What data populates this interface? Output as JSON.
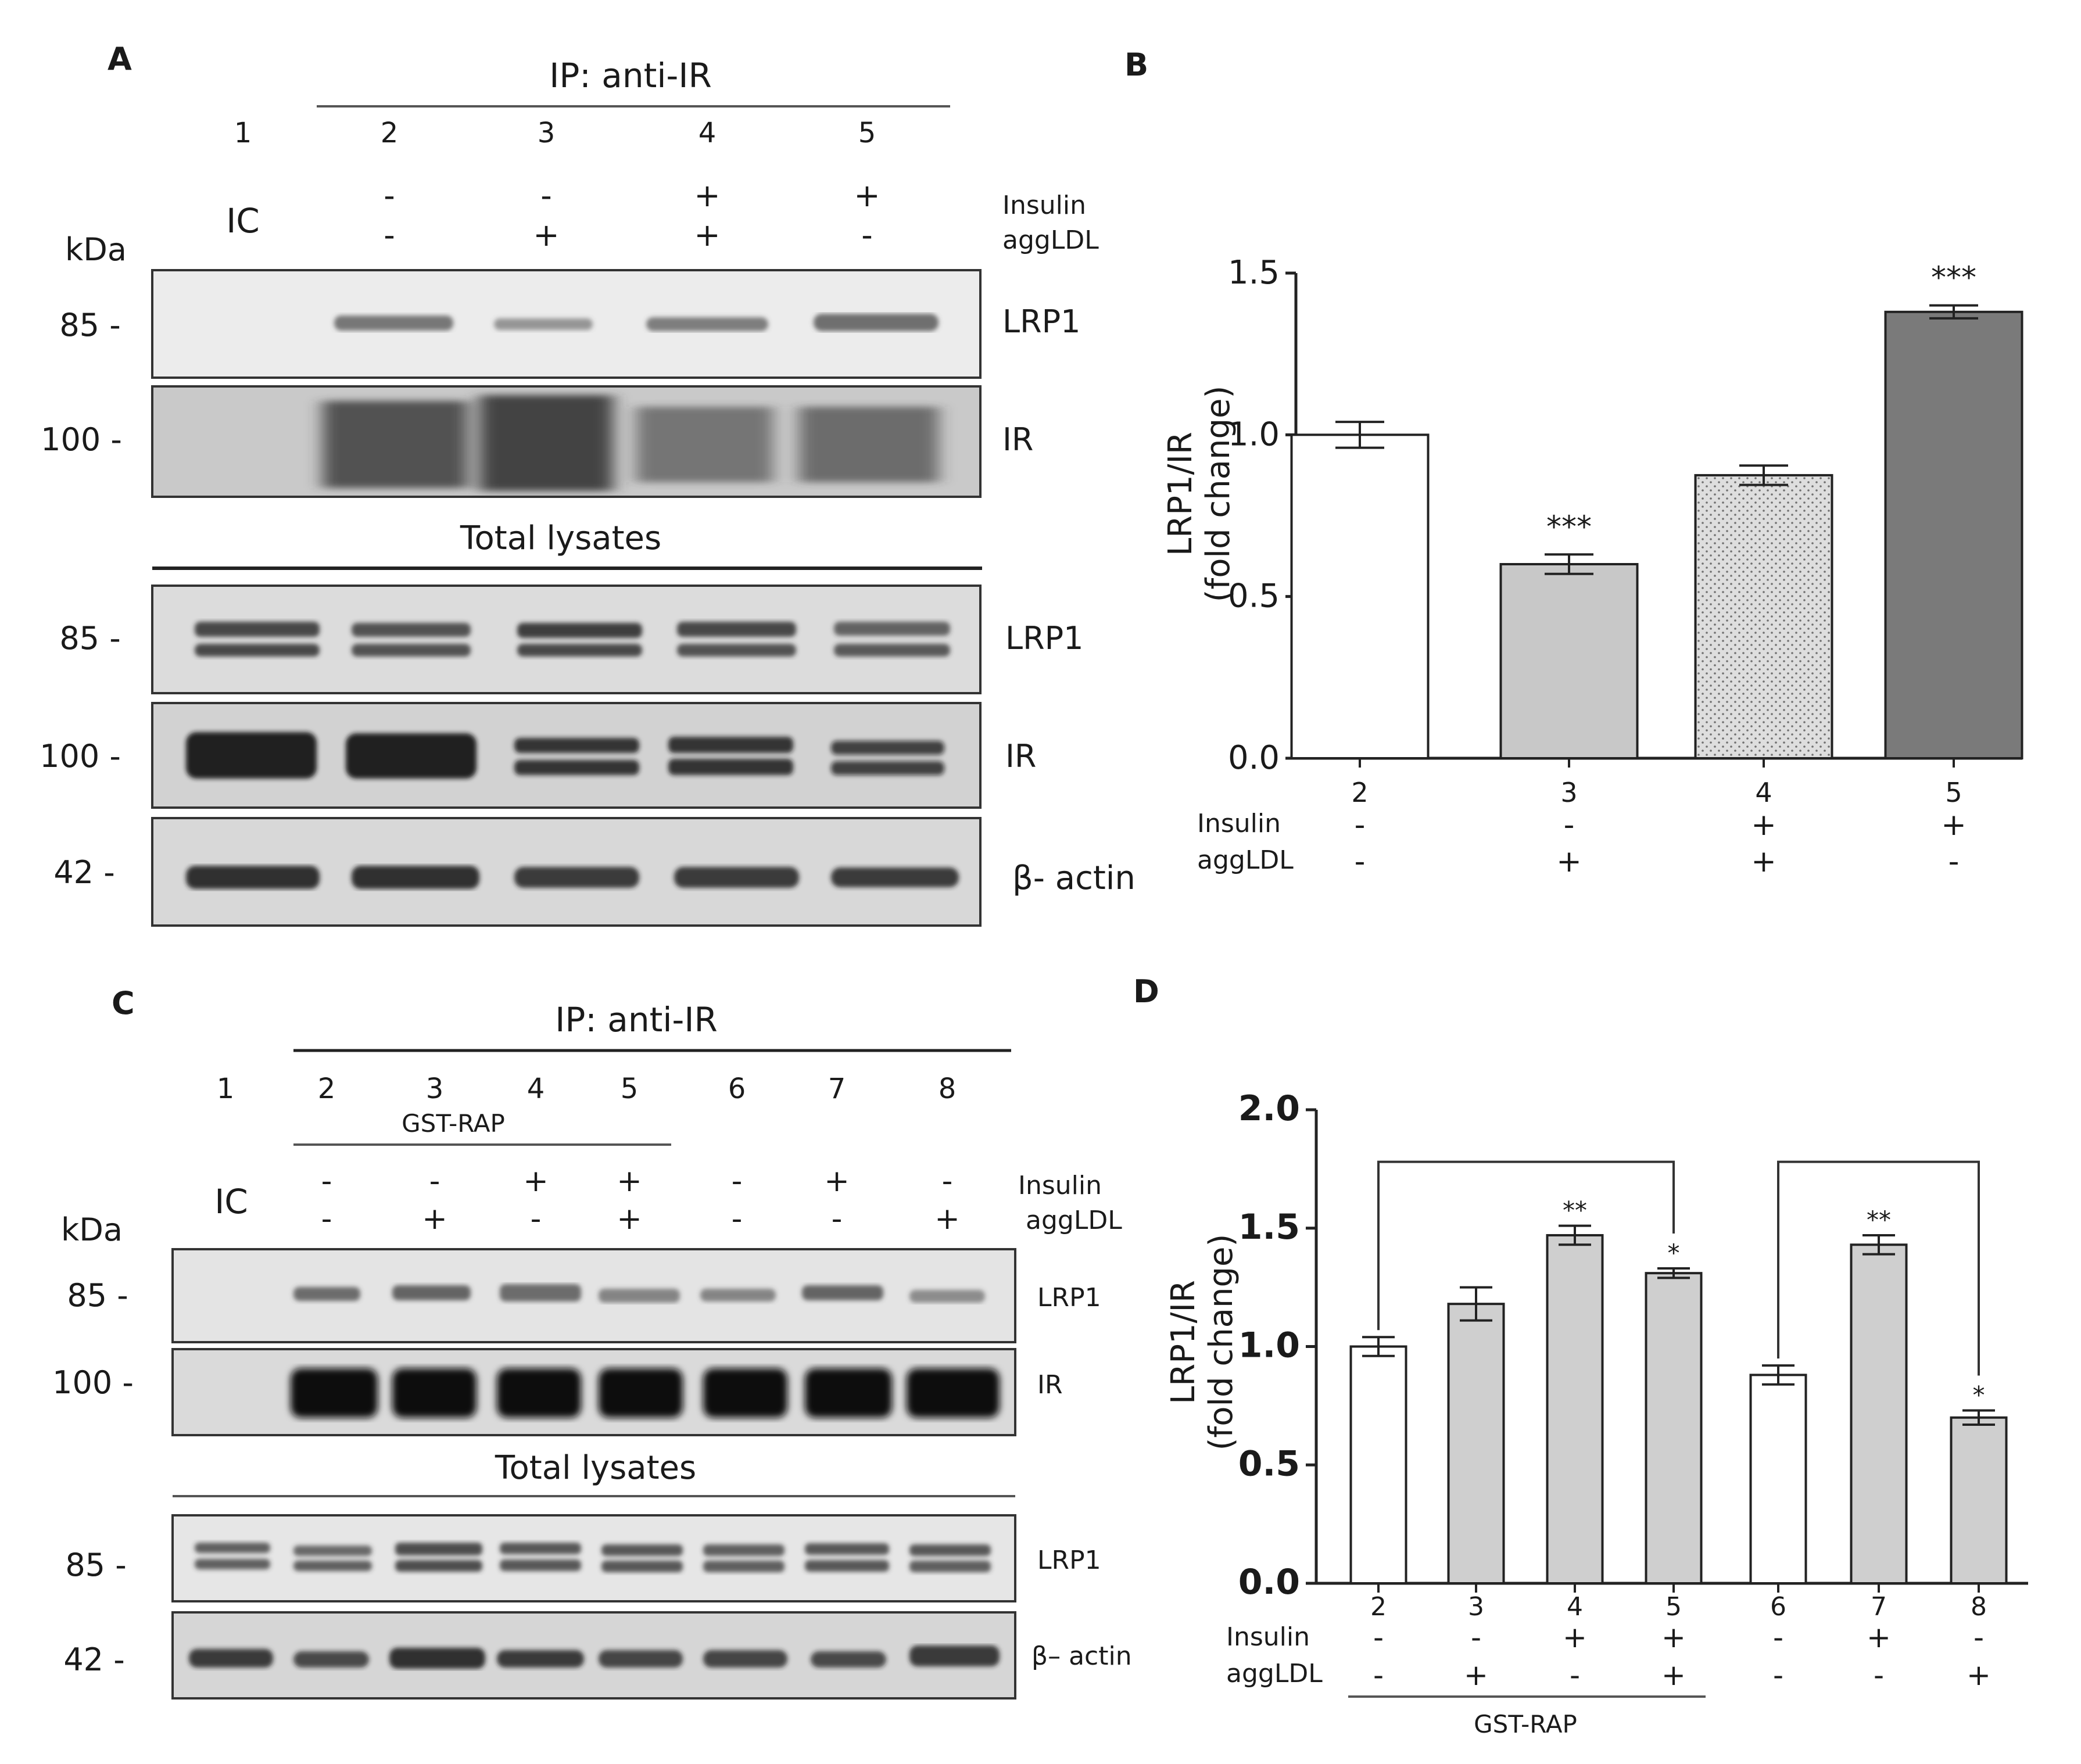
{
  "panels": {
    "A": {
      "letter": "A",
      "ip_header": "IP: anti-IR",
      "lanes": [
        "1",
        "2",
        "3",
        "4",
        "5"
      ],
      "ic_label": "IC",
      "kda_label": "kDa",
      "insulin_label": "Insulin",
      "aggldl_label": "aggLDL",
      "insulin_signs": [
        "-",
        "-",
        "+",
        "+"
      ],
      "aggldl_signs": [
        "-",
        "+",
        "+",
        "-"
      ],
      "total_lysates_header": "Total lysates",
      "ip_blots": [
        {
          "mw": "85 -",
          "label": "LRP1"
        },
        {
          "mw": "100 -",
          "label": "IR"
        }
      ],
      "lysate_blots": [
        {
          "mw": "85 -",
          "label": "LRP1"
        },
        {
          "mw": "100 -",
          "label": "IR"
        },
        {
          "mw": "42 -",
          "label": "β- actin"
        }
      ]
    },
    "B": {
      "letter": "B",
      "chart_data": {
        "type": "bar",
        "categories": [
          "2",
          "3",
          "4",
          "5"
        ],
        "values": [
          1.0,
          0.6,
          0.875,
          1.38
        ],
        "errors": [
          0.04,
          0.03,
          0.03,
          0.02
        ],
        "significance": [
          "",
          "***",
          "",
          "***"
        ],
        "ylabel_line1": "LRP1/IR",
        "ylabel_line2": "(fold change)",
        "ylim": [
          0,
          1.5
        ],
        "yticks": [
          "0.0",
          "0.5",
          "1.0",
          "1.5"
        ],
        "insulin_label": "Insulin",
        "aggldl_label": "aggLDL",
        "insulin_signs": [
          "-",
          "-",
          "+",
          "+"
        ],
        "aggldl_signs": [
          "-",
          "+",
          "+",
          "-"
        ],
        "colors": [
          "#ffffff",
          "#c8c8c8",
          "#d9d9d9",
          "#7a7a7a"
        ]
      }
    },
    "C": {
      "letter": "C",
      "ip_header": "IP: anti-IR",
      "lanes": [
        "1",
        "2",
        "3",
        "4",
        "5",
        "6",
        "7",
        "8"
      ],
      "gst_rap_label": "GST-RAP",
      "ic_label": "IC",
      "kda_label": "kDa",
      "insulin_label": "Insulin",
      "aggldl_label": "aggLDL",
      "insulin_signs": [
        "-",
        "-",
        "+",
        "+",
        "-",
        "+",
        "-"
      ],
      "aggldl_signs": [
        "-",
        "+",
        "-",
        "+",
        "-",
        "-",
        "+"
      ],
      "total_lysates_header": "Total lysates",
      "ip_blots": [
        {
          "mw": "85 -",
          "label": "LRP1"
        },
        {
          "mw": "100 -",
          "label": "IR"
        }
      ],
      "lysate_blots": [
        {
          "mw": "85 -",
          "label": "LRP1"
        },
        {
          "mw": "42 -",
          "label": "β– actin"
        }
      ]
    },
    "D": {
      "letter": "D",
      "chart_data": {
        "type": "bar",
        "categories": [
          "2",
          "3",
          "4",
          "5",
          "6",
          "7",
          "8"
        ],
        "values": [
          1.0,
          1.18,
          1.47,
          1.31,
          0.88,
          1.43,
          0.7
        ],
        "errors": [
          0.04,
          0.07,
          0.04,
          0.02,
          0.04,
          0.04,
          0.03
        ],
        "significance": [
          "",
          "",
          "**",
          "*",
          "",
          "**",
          "*"
        ],
        "ylabel_line1": "LRP1/IR",
        "ylabel_line2": "(fold change)",
        "ylim": [
          0,
          2.0
        ],
        "yticks": [
          "0.0",
          "0.5",
          "1.0",
          "1.5",
          "2.0"
        ],
        "insulin_label": "Insulin",
        "aggldl_label": "aggLDL",
        "insulin_signs": [
          "-",
          "-",
          "+",
          "+",
          "-",
          "+",
          "-"
        ],
        "aggldl_signs": [
          "-",
          "+",
          "-",
          "+",
          "-",
          "-",
          "+"
        ],
        "gst_rap_label": "GST-RAP",
        "colors": [
          "#ffffff",
          "#cfcfcf",
          "#cfcfcf",
          "#cfcfcf",
          "#ffffff",
          "#cfcfcf",
          "#cfcfcf"
        ]
      }
    }
  }
}
